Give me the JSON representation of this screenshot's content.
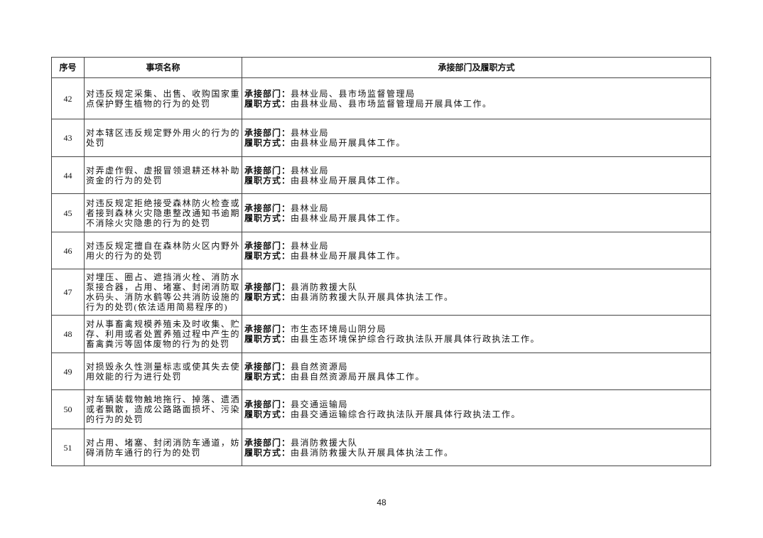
{
  "table": {
    "headers": [
      "序号",
      "事项名称",
      "承接部门及履职方式"
    ],
    "dept_label": "承接部门：",
    "mode_label": "履职方式：",
    "rows": [
      {
        "no": "42",
        "name": "对违反规定采集、出售、收购国家重点保护野生植物的行为的处罚",
        "dept": "县林业局、县市场监督管理局",
        "mode": "由县林业局、县市场监督管理局开展具体工作。"
      },
      {
        "no": "43",
        "name": "对本辖区违反规定野外用火的行为的处罚",
        "dept": "县林业局",
        "mode": "由县林业局开展具体工作。"
      },
      {
        "no": "44",
        "name": "对弄虚作假、虚报冒领退耕还林补助资金的行为的处罚",
        "dept": "县林业局",
        "mode": "由县林业局开展具体工作。"
      },
      {
        "no": "45",
        "name": "对违反规定拒绝接受森林防火检查或者接到森林火灾隐患整改通知书逾期不消除火灾隐患的行为的处罚",
        "dept": "县林业局",
        "mode": "由县林业局开展具体工作。"
      },
      {
        "no": "46",
        "name": "对违反规定擅自在森林防火区内野外用火的行为的处罚",
        "dept": "县林业局",
        "mode": "由县林业局开展具体工作。"
      },
      {
        "no": "47",
        "name": "对埋压、圈占、遮挡消火栓、消防水泵接合器，占用、堵塞、封闭消防取水码头、消防水鹤等公共消防设施的行为的处罚(依法适用简易程序的)",
        "dept": "县消防救援大队",
        "mode": "由县消防救援大队开展具体执法工作。"
      },
      {
        "no": "48",
        "name": "对从事畜禽规模养殖未及时收集、贮存、利用或者处置养殖过程中产生的畜禽粪污等固体废物的行为的处罚",
        "dept": "市生态环境局山阴分局",
        "mode": "由县生态环境保护综合行政执法队开展具体行政执法工作。"
      },
      {
        "no": "49",
        "name": "对损毁永久性测量标志或使其失去使用效能的行为进行处罚",
        "dept": "县自然资源局",
        "mode": "由县自然资源局开展具体工作。"
      },
      {
        "no": "50",
        "name": "对车辆装载物触地拖行、掉落、遗洒或者飘散，造成公路路面损坏、污染的行为的处罚",
        "dept": "县交通运输局",
        "mode": "由县交通运输综合行政执法队开展具体行政执法工作。"
      },
      {
        "no": "51",
        "name": "对占用、堵塞、封闭消防车通道，妨碍消防车通行的行为的处罚",
        "dept": "县消防救援大队",
        "mode": "由县消防救援大队开展具体执法工作。"
      }
    ]
  },
  "page_number": "48"
}
